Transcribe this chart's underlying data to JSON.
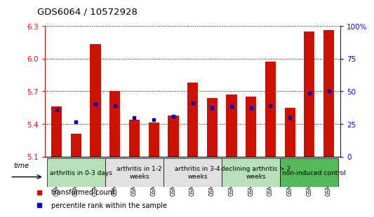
{
  "title": "GDS6064 / 10572928",
  "samples": [
    "GSM1498289",
    "GSM1498290",
    "GSM1498291",
    "GSM1498292",
    "GSM1498293",
    "GSM1498294",
    "GSM1498295",
    "GSM1498296",
    "GSM1498297",
    "GSM1498298",
    "GSM1498299",
    "GSM1498300",
    "GSM1498301",
    "GSM1498302",
    "GSM1498303"
  ],
  "red_values": [
    5.56,
    5.31,
    6.13,
    5.7,
    5.44,
    5.41,
    5.48,
    5.78,
    5.64,
    5.67,
    5.65,
    5.97,
    5.55,
    6.25,
    6.26
  ],
  "blue_values": [
    5.53,
    5.42,
    5.58,
    5.57,
    5.46,
    5.44,
    5.47,
    5.59,
    5.55,
    5.56,
    5.55,
    5.57,
    5.46,
    5.68,
    5.7
  ],
  "ylim_left": [
    5.1,
    6.3
  ],
  "ylim_right": [
    0,
    100
  ],
  "right_ticks": [
    0,
    25,
    50,
    75,
    100
  ],
  "right_tick_labels": [
    "0",
    "25",
    "50",
    "75",
    "100%"
  ],
  "left_ticks": [
    5.1,
    5.4,
    5.7,
    6.0,
    6.3
  ],
  "groups": [
    {
      "label": "arthritis in 0-3 days",
      "start": 0,
      "end": 3,
      "color": "#b8e0ba"
    },
    {
      "label": "arthritis in 1-2\nweeks",
      "start": 3,
      "end": 6,
      "color": "#e0e0e0"
    },
    {
      "label": "arthritis in 3-4\nweeks",
      "start": 6,
      "end": 9,
      "color": "#e0e0e0"
    },
    {
      "label": "declining arthritis > 2\nweeks",
      "start": 9,
      "end": 12,
      "color": "#b8e0ba"
    },
    {
      "label": "non-induced control",
      "start": 12,
      "end": 15,
      "color": "#55b85a"
    }
  ],
  "bar_color": "#cc1100",
  "dot_color": "#0000cc",
  "baseline": 5.1,
  "legend_red": "transformed count",
  "legend_blue": "percentile rank within the sample",
  "tick_fontsize": 7.5,
  "group_label_fontsize": 6.5,
  "sample_fontsize": 5.5
}
